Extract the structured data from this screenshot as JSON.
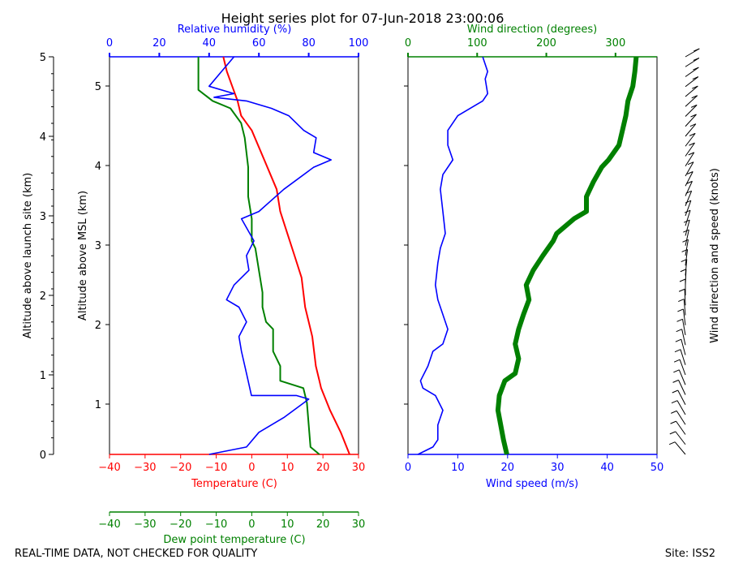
{
  "title": "Height series plot for 07-Jun-2018 23:00:06",
  "footer_left": "REAL-TIME DATA, NOT CHECKED FOR QUALITY",
  "footer_right": "Site: ISS2",
  "colors": {
    "temp": "#ff0000",
    "dew": "#008000",
    "rh": "#0000ff",
    "wspd": "#0000ff",
    "wdir": "#008000",
    "barb": "#000000"
  },
  "chart_data": [
    {
      "type": "line",
      "name": "thermo-panel",
      "left_axis": {
        "label": "Altitude above launch site (km)",
        "ticks": [
          "0",
          "1",
          "2",
          "3",
          "4",
          "5"
        ],
        "range": [
          0,
          5
        ]
      },
      "right_axis": {
        "label": "Altitude above MSL (km)",
        "ticks": [
          "1",
          "2",
          "3",
          "4",
          "5"
        ]
      },
      "temperature_axis": {
        "label": "Temperature (C)",
        "range": [
          -40,
          30
        ],
        "ticks": [
          "−40",
          "−30",
          "−20",
          "−10",
          "0",
          "10",
          "20",
          "30"
        ]
      },
      "dewpoint_axis": {
        "label": "Dew point temperature (C)",
        "range": [
          -40,
          30
        ],
        "ticks": [
          "−40",
          "−30",
          "−20",
          "−10",
          "0",
          "10",
          "20",
          "30"
        ]
      },
      "rh_axis": {
        "label": "Relative humidity (%)",
        "range": [
          0,
          100
        ],
        "ticks": [
          "0",
          "20",
          "40",
          "60",
          "80",
          "100"
        ]
      },
      "series": [
        {
          "name": "Temperature",
          "color": "#ff0000",
          "points": [
            [
              27.5,
              0
            ],
            [
              25,
              0.3
            ],
            [
              22,
              0.6
            ],
            [
              19.5,
              0.9
            ],
            [
              19,
              1.0
            ],
            [
              18,
              1.2
            ],
            [
              17,
              1.6
            ],
            [
              15,
              2.0
            ],
            [
              14,
              2.4
            ],
            [
              12,
              2.7
            ],
            [
              10,
              3.0
            ],
            [
              8,
              3.3
            ],
            [
              7,
              3.6
            ],
            [
              3.5,
              4.0
            ],
            [
              0,
              4.4
            ],
            [
              -3,
              4.6
            ],
            [
              -4,
              4.8
            ],
            [
              -5.5,
              5.0
            ],
            [
              -7,
              5.2
            ],
            [
              -8,
              5.4
            ]
          ]
        },
        {
          "name": "Dew point",
          "color": "#008000",
          "points": [
            [
              19,
              0
            ],
            [
              16.5,
              0.1
            ],
            [
              16,
              0.4
            ],
            [
              15.5,
              0.7
            ],
            [
              15,
              0.8
            ],
            [
              14.5,
              0.9
            ],
            [
              8,
              1.0
            ],
            [
              8,
              1.2
            ],
            [
              6,
              1.4
            ],
            [
              6,
              1.6
            ],
            [
              6,
              1.7
            ],
            [
              4,
              1.8
            ],
            [
              3,
              2.0
            ],
            [
              3,
              2.2
            ],
            [
              2,
              2.5
            ],
            [
              1,
              2.8
            ],
            [
              0,
              2.9
            ],
            [
              0,
              3.2
            ],
            [
              -1,
              3.5
            ],
            [
              -1,
              3.9
            ],
            [
              -2,
              4.3
            ],
            [
              -3,
              4.5
            ],
            [
              -6,
              4.7
            ],
            [
              -11,
              4.8
            ],
            [
              -15,
              4.95
            ],
            [
              -15,
              5.1
            ],
            [
              -15,
              5.4
            ]
          ]
        },
        {
          "name": "Relative humidity",
          "color": "#0000ff",
          "points": [
            [
              40,
              0.0
            ],
            [
              55,
              0.1
            ],
            [
              60,
              0.3
            ],
            [
              70,
              0.5
            ],
            [
              78,
              0.7
            ],
            [
              80,
              0.75
            ],
            [
              75,
              0.8
            ],
            [
              57,
              0.8
            ],
            [
              55,
              1.1
            ],
            [
              53,
              1.4
            ],
            [
              52,
              1.6
            ],
            [
              55,
              1.8
            ],
            [
              52,
              2.0
            ],
            [
              47,
              2.1
            ],
            [
              50,
              2.3
            ],
            [
              56,
              2.5
            ],
            [
              55,
              2.7
            ],
            [
              58,
              2.9
            ],
            [
              53,
              3.2
            ],
            [
              60,
              3.3
            ],
            [
              70,
              3.6
            ],
            [
              82,
              3.9
            ],
            [
              89,
              4.0
            ],
            [
              82,
              4.1
            ],
            [
              83,
              4.3
            ],
            [
              78,
              4.4
            ],
            [
              72,
              4.6
            ],
            [
              65,
              4.7
            ],
            [
              55,
              4.8
            ],
            [
              42,
              4.85
            ],
            [
              50,
              4.9
            ],
            [
              40,
              5.0
            ],
            [
              45,
              5.2
            ],
            [
              50,
              5.4
            ]
          ]
        }
      ]
    },
    {
      "type": "line",
      "name": "wind-panel",
      "wind_speed_axis": {
        "label": "Wind speed (m/s)",
        "range": [
          0,
          50
        ],
        "ticks": [
          "0",
          "10",
          "20",
          "30",
          "40",
          "50"
        ]
      },
      "wind_direction_axis": {
        "label": "Wind direction (degrees)",
        "range": [
          0,
          360
        ],
        "ticks": [
          "0",
          "100",
          "200",
          "300"
        ]
      },
      "series": [
        {
          "name": "Wind speed",
          "color": "#0000ff",
          "points": [
            [
              2,
              0
            ],
            [
              5,
              0.1
            ],
            [
              6,
              0.2
            ],
            [
              6,
              0.4
            ],
            [
              7,
              0.6
            ],
            [
              5.5,
              0.8
            ],
            [
              3,
              0.9
            ],
            [
              2.5,
              1.0
            ],
            [
              4,
              1.2
            ],
            [
              5,
              1.4
            ],
            [
              7,
              1.5
            ],
            [
              8,
              1.7
            ],
            [
              7,
              1.9
            ],
            [
              6,
              2.1
            ],
            [
              5.5,
              2.3
            ],
            [
              6,
              2.6
            ],
            [
              6.5,
              2.8
            ],
            [
              7.5,
              3.0
            ],
            [
              7,
              3.3
            ],
            [
              6.5,
              3.6
            ],
            [
              7,
              3.8
            ],
            [
              9,
              4.0
            ],
            [
              8,
              4.2
            ],
            [
              8,
              4.4
            ],
            [
              10,
              4.6
            ],
            [
              15,
              4.8
            ],
            [
              16,
              4.9
            ],
            [
              15.5,
              5.1
            ],
            [
              16,
              5.2
            ],
            [
              15,
              5.4
            ]
          ]
        },
        {
          "name": "Wind direction",
          "color": "#008000",
          "points": [
            [
              143,
              0
            ],
            [
              138,
              0.2
            ],
            [
              134,
              0.4
            ],
            [
              130,
              0.6
            ],
            [
              132,
              0.8
            ],
            [
              140,
              1.0
            ],
            [
              155,
              1.1
            ],
            [
              160,
              1.3
            ],
            [
              155,
              1.5
            ],
            [
              160,
              1.7
            ],
            [
              167,
              1.9
            ],
            [
              175,
              2.1
            ],
            [
              171,
              2.3
            ],
            [
              181,
              2.5
            ],
            [
              195,
              2.7
            ],
            [
              210,
              2.9
            ],
            [
              215,
              3.0
            ],
            [
              240,
              3.2
            ],
            [
              258,
              3.3
            ],
            [
              258,
              3.5
            ],
            [
              268,
              3.7
            ],
            [
              280,
              3.9
            ],
            [
              290,
              4.0
            ],
            [
              305,
              4.2
            ],
            [
              310,
              4.4
            ],
            [
              315,
              4.6
            ],
            [
              318,
              4.8
            ],
            [
              325,
              5.0
            ],
            [
              328,
              5.2
            ],
            [
              330,
              5.4
            ]
          ]
        }
      ],
      "annotation": "Wind direction and speed (knots)"
    }
  ]
}
